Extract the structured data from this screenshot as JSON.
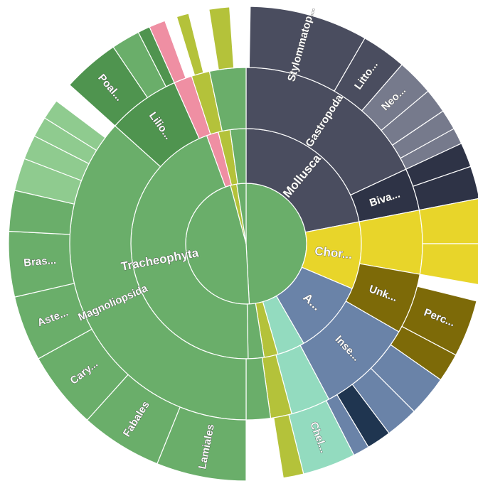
{
  "chart_data": {
    "type": "sunburst",
    "colors": {
      "green": "#6aae6a",
      "darkgreen": "#4f944f",
      "lightgreen": "#8fcb8f",
      "pink": "#ef8fa3",
      "olive": "#b4c23a",
      "slate": "#4a4d5f",
      "slatelight": "#767a8c",
      "dark": "#2e3346",
      "yellow": "#e8d52a",
      "brown": "#7d6a08",
      "steel": "#6a83a8",
      "navy": "#1f3550",
      "mint": "#93dbbf"
    },
    "segments": [
      {
        "label": "",
        "ring": 0,
        "start": 0,
        "end": 177,
        "color": "green"
      },
      {
        "label": "",
        "ring": 0,
        "start": 177,
        "end": 345,
        "color": "green"
      },
      {
        "label": "",
        "ring": 0,
        "start": 345,
        "end": 351,
        "color": "olive"
      },
      {
        "label": "",
        "ring": 0,
        "start": 351,
        "end": 360,
        "color": "green"
      },
      {
        "label": "Mollusca",
        "ring": 1,
        "start": 0,
        "end": 79,
        "color": "slate"
      },
      {
        "label": "Chor...",
        "ring": 1,
        "start": 79,
        "end": 113,
        "color": "yellow"
      },
      {
        "label": "A...",
        "ring": 1,
        "start": 113,
        "end": 150,
        "color": "steel"
      },
      {
        "label": "",
        "ring": 1,
        "start": 150,
        "end": 164,
        "color": "mint"
      },
      {
        "label": "",
        "ring": 1,
        "start": 164,
        "end": 171,
        "color": "olive"
      },
      {
        "label": "",
        "ring": 1,
        "start": 171,
        "end": 179,
        "color": "green"
      },
      {
        "label": "Tracheophyta",
        "ring": 1,
        "start": 179,
        "end": 340,
        "color": "green"
      },
      {
        "label": "",
        "ring": 1,
        "start": 340,
        "end": 346,
        "color": "pink"
      },
      {
        "label": "",
        "ring": 1,
        "start": 346,
        "end": 352,
        "color": "olive"
      },
      {
        "label": "",
        "ring": 1,
        "start": 352,
        "end": 360,
        "color": "green"
      },
      {
        "label": "Gastropoda",
        "ring": 2,
        "start": 0,
        "end": 65,
        "color": "slate"
      },
      {
        "label": "Biva...",
        "ring": 2,
        "start": 65,
        "end": 79,
        "color": "dark"
      },
      {
        "label": "",
        "ring": 2,
        "start": 79,
        "end": 100,
        "color": "yellow"
      },
      {
        "label": "Unk...",
        "ring": 2,
        "start": 100,
        "end": 120,
        "color": "brown"
      },
      {
        "label": "Inse...",
        "ring": 2,
        "start": 120,
        "end": 152,
        "color": "steel"
      },
      {
        "label": "",
        "ring": 2,
        "start": 152,
        "end": 165,
        "color": "mint"
      },
      {
        "label": "",
        "ring": 2,
        "start": 165,
        "end": 172,
        "color": "olive"
      },
      {
        "label": "",
        "ring": 2,
        "start": 172,
        "end": 180,
        "color": "green"
      },
      {
        "label": "Magnoliopsida",
        "ring": 2,
        "start": 180,
        "end": 312,
        "color": "green"
      },
      {
        "label": "Lilio...",
        "ring": 2,
        "start": 312,
        "end": 336,
        "color": "darkgreen"
      },
      {
        "label": "",
        "ring": 2,
        "start": 336,
        "end": 342,
        "color": "pink"
      },
      {
        "label": "",
        "ring": 2,
        "start": 342,
        "end": 348,
        "color": "olive"
      },
      {
        "label": "",
        "ring": 2,
        "start": 348,
        "end": 360,
        "color": "green"
      },
      {
        "label": "Stylommatop...",
        "ring": 3,
        "start": 1,
        "end": 30,
        "color": "slate"
      },
      {
        "label": "Litto...",
        "ring": 3,
        "start": 30,
        "end": 41,
        "color": "slate"
      },
      {
        "label": "Neo...",
        "ring": 3,
        "start": 41,
        "end": 50,
        "color": "slatelight"
      },
      {
        "label": "",
        "ring": 3,
        "start": 50,
        "end": 56,
        "color": "slatelight"
      },
      {
        "label": "",
        "ring": 3,
        "start": 56,
        "end": 61,
        "color": "slatelight"
      },
      {
        "label": "",
        "ring": 3,
        "start": 61,
        "end": 65,
        "color": "slatelight"
      },
      {
        "label": "",
        "ring": 3,
        "start": 65,
        "end": 71,
        "color": "dark"
      },
      {
        "label": "",
        "ring": 3,
        "start": 71,
        "end": 79,
        "color": "dark"
      },
      {
        "label": "",
        "ring": 3,
        "start": 79,
        "end": 90,
        "color": "yellow"
      },
      {
        "label": "",
        "ring": 3,
        "start": 90,
        "end": 100,
        "color": "yellow"
      },
      {
        "label": "Perc...",
        "ring": 3,
        "start": 104,
        "end": 118,
        "color": "brown"
      },
      {
        "label": "",
        "ring": 3,
        "start": 118,
        "end": 125,
        "color": "brown"
      },
      {
        "label": "",
        "ring": 3,
        "start": 125,
        "end": 135,
        "color": "steel"
      },
      {
        "label": "",
        "ring": 3,
        "start": 135,
        "end": 143,
        "color": "steel"
      },
      {
        "label": "",
        "ring": 3,
        "start": 143,
        "end": 149,
        "color": "navy"
      },
      {
        "label": "",
        "ring": 3,
        "start": 149,
        "end": 153,
        "color": "steel"
      },
      {
        "label": "Chel...",
        "ring": 3,
        "start": 153,
        "end": 166,
        "color": "mint"
      },
      {
        "label": "",
        "ring": 3,
        "start": 166,
        "end": 171,
        "color": "olive"
      },
      {
        "label": "Lamiales",
        "ring": 3,
        "start": 180,
        "end": 202,
        "color": "green"
      },
      {
        "label": "Fabales",
        "ring": 3,
        "start": 202,
        "end": 222,
        "color": "green"
      },
      {
        "label": "Cary...",
        "ring": 3,
        "start": 222,
        "end": 241,
        "color": "green"
      },
      {
        "label": "Aste...",
        "ring": 3,
        "start": 241,
        "end": 257,
        "color": "green"
      },
      {
        "label": "Bras...",
        "ring": 3,
        "start": 257,
        "end": 273,
        "color": "green"
      },
      {
        "label": "",
        "ring": 3,
        "start": 273,
        "end": 283,
        "color": "green"
      },
      {
        "label": "",
        "ring": 3,
        "start": 283,
        "end": 291,
        "color": "lightgreen"
      },
      {
        "label": "",
        "ring": 3,
        "start": 291,
        "end": 297,
        "color": "lightgreen"
      },
      {
        "label": "",
        "ring": 3,
        "start": 297,
        "end": 302,
        "color": "lightgreen"
      },
      {
        "label": "",
        "ring": 3,
        "start": 302,
        "end": 307,
        "color": "lightgreen"
      },
      {
        "label": "Poal...",
        "ring": 3,
        "start": 312,
        "end": 326,
        "color": "darkgreen"
      },
      {
        "label": "",
        "ring": 3,
        "start": 326,
        "end": 333,
        "color": "green"
      },
      {
        "label": "",
        "ring": 3,
        "start": 333,
        "end": 336,
        "color": "darkgreen"
      },
      {
        "label": "",
        "ring": 3,
        "start": 336,
        "end": 340,
        "color": "pink"
      },
      {
        "label": "",
        "ring": 3,
        "start": 343,
        "end": 346,
        "color": "olive"
      },
      {
        "label": "",
        "ring": 3,
        "start": 351,
        "end": 356,
        "color": "olive"
      }
    ]
  }
}
